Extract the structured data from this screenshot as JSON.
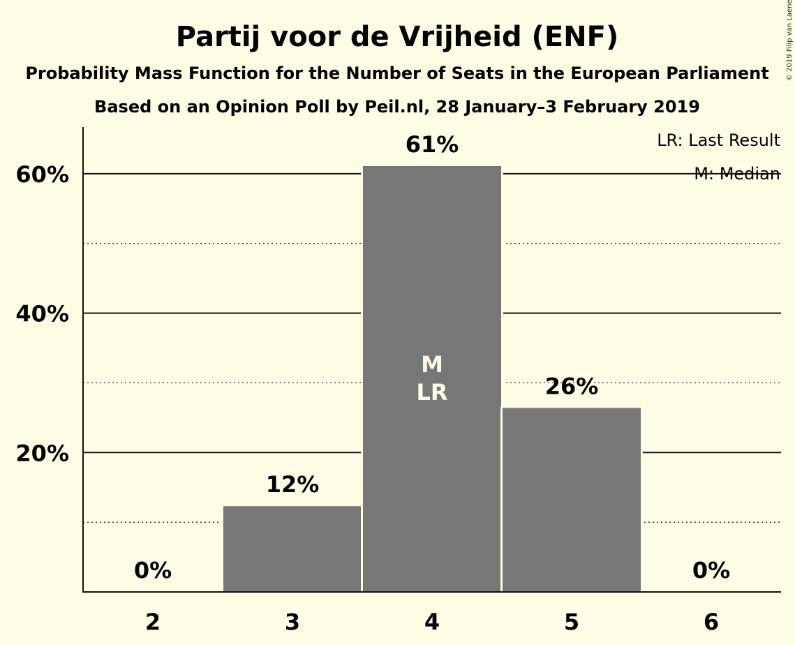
{
  "chart_data": {
    "type": "bar",
    "title": "Partij voor de Vrijheid (ENF)",
    "subtitle_1": "Probability Mass Function for the Number of Seats in the European Parliament",
    "subtitle_2": "Based on an Opinion Poll by Peil.nl, 28 January–3 February 2019",
    "categories": [
      "2",
      "3",
      "4",
      "5",
      "6"
    ],
    "values": [
      0,
      12.3,
      61.1,
      26.4,
      0
    ],
    "value_labels": [
      "0%",
      "12%",
      "61%",
      "26%",
      "0%"
    ],
    "bar_color": "#777777",
    "ylim": [
      0,
      66.7
    ],
    "yticks": [
      20,
      40,
      60
    ],
    "ytick_labels": [
      "20%",
      "40%",
      "60%"
    ],
    "minor_gridlines": [
      10,
      30,
      50
    ],
    "median_category": "4",
    "last_result_category": "4",
    "median_marker": "M",
    "last_result_marker": "LR",
    "legend": {
      "placement": "top-right",
      "last_result": "LR: Last Result",
      "median": "M: Median"
    },
    "copyright": "© 2019 Filip van Laenen"
  }
}
